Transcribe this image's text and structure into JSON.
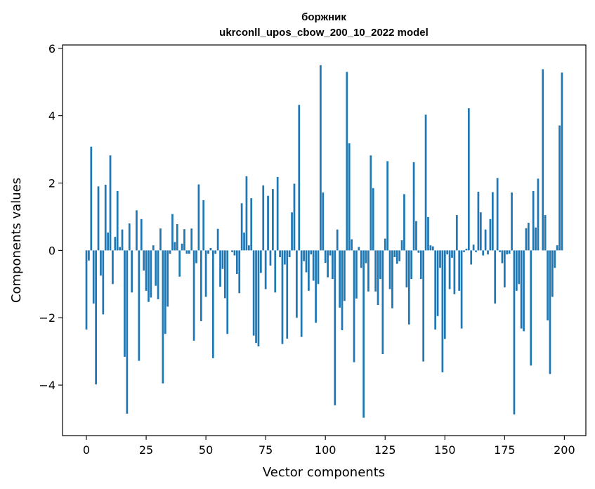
{
  "chart_data": {
    "type": "bar",
    "title": [
      "боржник",
      "ukrconll_upos_cbow_200_10_2022 model"
    ],
    "xlabel": "Vector components",
    "ylabel": "Components values",
    "xlim": [
      -10,
      209
    ],
    "ylim": [
      -5.5,
      6.1
    ],
    "xticks": [
      0,
      25,
      50,
      75,
      100,
      125,
      150,
      175,
      200
    ],
    "yticks": [
      -4,
      -2,
      0,
      2,
      4,
      6
    ],
    "bar_color": "#1f77b4",
    "grid": false,
    "x": [
      0,
      1,
      2,
      3,
      4,
      5,
      6,
      7,
      8,
      9,
      10,
      11,
      12,
      13,
      14,
      15,
      16,
      17,
      18,
      19,
      20,
      21,
      22,
      23,
      24,
      25,
      26,
      27,
      28,
      29,
      30,
      31,
      32,
      33,
      34,
      35,
      36,
      37,
      38,
      39,
      40,
      41,
      42,
      43,
      44,
      45,
      46,
      47,
      48,
      49,
      50,
      51,
      52,
      53,
      54,
      55,
      56,
      57,
      58,
      59,
      60,
      61,
      62,
      63,
      64,
      65,
      66,
      67,
      68,
      69,
      70,
      71,
      72,
      73,
      74,
      75,
      76,
      77,
      78,
      79,
      80,
      81,
      82,
      83,
      84,
      85,
      86,
      87,
      88,
      89,
      90,
      91,
      92,
      93,
      94,
      95,
      96,
      97,
      98,
      99,
      100,
      101,
      102,
      103,
      104,
      105,
      106,
      107,
      108,
      109,
      110,
      111,
      112,
      113,
      114,
      115,
      116,
      117,
      118,
      119,
      120,
      121,
      122,
      123,
      124,
      125,
      126,
      127,
      128,
      129,
      130,
      131,
      132,
      133,
      134,
      135,
      136,
      137,
      138,
      139,
      140,
      141,
      142,
      143,
      144,
      145,
      146,
      147,
      148,
      149,
      150,
      151,
      152,
      153,
      154,
      155,
      156,
      157,
      158,
      159,
      160,
      161,
      162,
      163,
      164,
      165,
      166,
      167,
      168,
      169,
      170,
      171,
      172,
      173,
      174,
      175,
      176,
      177,
      178,
      179,
      180,
      181,
      182,
      183,
      184,
      185,
      186,
      187,
      188,
      189,
      190,
      191,
      192,
      193,
      194,
      195,
      196,
      197,
      198,
      199
    ],
    "values": [
      -2.35,
      -0.3,
      3.08,
      -1.58,
      -3.98,
      1.9,
      -0.75,
      -1.9,
      1.95,
      0.53,
      2.82,
      -1.0,
      0.4,
      1.76,
      0.1,
      0.62,
      -3.16,
      -4.85,
      0.8,
      -1.25,
      0.0,
      1.19,
      -3.28,
      0.93,
      -0.6,
      -1.2,
      -1.53,
      -1.4,
      0.15,
      -1.05,
      -1.45,
      0.65,
      -3.95,
      -2.48,
      -1.67,
      -0.1,
      1.08,
      0.25,
      0.78,
      -0.78,
      0.2,
      0.63,
      -0.1,
      -0.1,
      0.65,
      -2.68,
      -0.38,
      1.96,
      -2.1,
      1.49,
      -1.38,
      -0.1,
      0.07,
      -3.2,
      -0.1,
      0.64,
      -1.08,
      -0.55,
      -1.42,
      -2.48,
      0.0,
      -0.05,
      -0.15,
      -0.7,
      -1.27,
      1.4,
      0.53,
      2.2,
      0.15,
      1.55,
      -2.53,
      -2.75,
      -2.85,
      -0.67,
      1.93,
      -1.15,
      1.62,
      -0.45,
      1.82,
      -1.25,
      2.18,
      -0.2,
      -2.78,
      -0.42,
      -2.62,
      -0.2,
      1.13,
      1.98,
      -2.0,
      4.32,
      -2.57,
      -0.32,
      -0.65,
      -1.2,
      -0.12,
      -0.9,
      -2.15,
      -1.0,
      5.5,
      1.72,
      -0.37,
      -0.8,
      -0.15,
      -0.85,
      -4.6,
      0.62,
      -1.7,
      -2.37,
      -1.5,
      5.3,
      3.18,
      0.33,
      -3.32,
      -1.43,
      0.1,
      -0.52,
      -4.97,
      -0.38,
      -1.22,
      2.82,
      1.85,
      -1.22,
      -1.62,
      -0.85,
      -3.08,
      0.35,
      2.65,
      -1.15,
      -1.72,
      -0.2,
      -0.4,
      -0.32,
      0.3,
      1.67,
      -1.1,
      -2.2,
      -0.85,
      2.62,
      0.87,
      -0.07,
      -0.85,
      -3.3,
      4.03,
      0.99,
      0.15,
      0.12,
      -2.35,
      -1.95,
      -0.52,
      -3.62,
      -2.63,
      -0.12,
      -1.15,
      -0.22,
      -1.3,
      1.05,
      -1.2,
      -2.32,
      -0.05,
      0.05,
      4.22,
      -0.42,
      0.17,
      -0.05,
      1.74,
      1.13,
      -0.15,
      0.62,
      -0.12,
      0.93,
      1.73,
      -1.58,
      2.15,
      -0.05,
      -0.38,
      -1.1,
      -0.12,
      -0.1,
      1.72,
      -4.87,
      -1.2,
      -1.0,
      -2.32,
      -2.4,
      0.66,
      0.82,
      -3.42,
      1.76,
      0.68,
      2.13,
      0.0,
      5.38,
      1.05,
      -2.08,
      -3.67,
      -1.38,
      -0.52,
      0.15,
      3.71,
      5.28
    ]
  }
}
